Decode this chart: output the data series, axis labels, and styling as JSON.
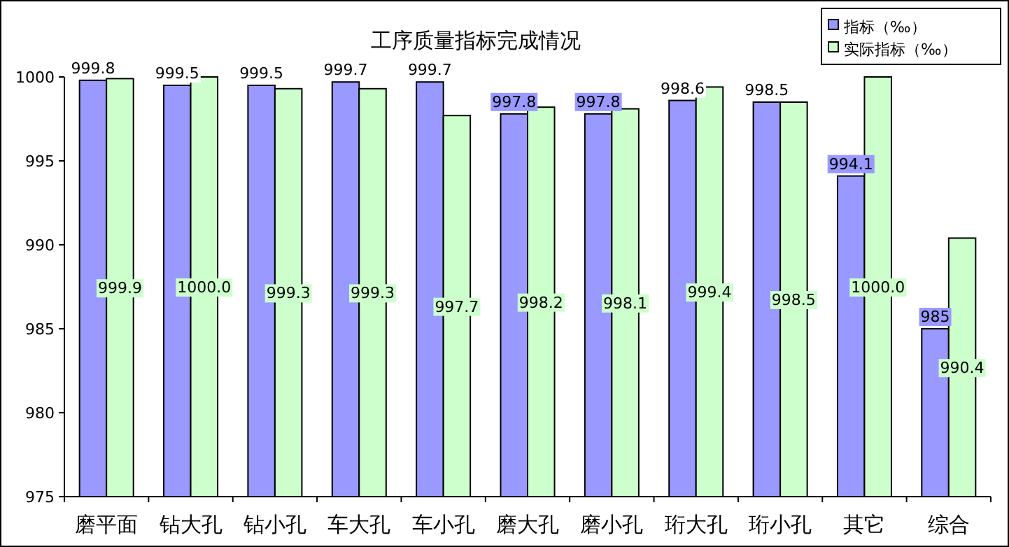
{
  "chart_data": {
    "type": "bar",
    "title": "工序质量指标完成情况",
    "categories": [
      "磨平面",
      "钻大孔",
      "钻小孔",
      "车大孔",
      "车小孔",
      "磨大孔",
      "磨小孔",
      "珩大孔",
      "珩小孔",
      "其它",
      "综合"
    ],
    "series": [
      {
        "name": "指标（‰）",
        "color": "#9999ff",
        "values": [
          999.8,
          999.5,
          999.5,
          999.7,
          999.7,
          997.8,
          997.8,
          998.6,
          998.5,
          994.1,
          985
        ],
        "value_labels": [
          "999.8",
          "999.5",
          "999.5",
          "999.7",
          "999.7",
          "997.8",
          "997.8",
          "998.6",
          "998.5",
          "994.1",
          "985"
        ]
      },
      {
        "name": "实际指标（‰）",
        "color": "#ccffcc",
        "values": [
          999.9,
          1000.0,
          999.3,
          999.3,
          997.7,
          998.2,
          998.1,
          999.4,
          998.5,
          1000.0,
          990.4
        ],
        "value_labels": [
          "999.9",
          "1000.0",
          "999.3",
          "999.3",
          "997.7",
          "998.2",
          "998.1",
          "999.4",
          "998.5",
          "1000.0",
          "990.4"
        ]
      }
    ],
    "ylim": [
      975,
      1000
    ],
    "yticks": [
      975,
      980,
      985,
      990,
      995,
      1000
    ],
    "grid": false,
    "legend": "top right"
  }
}
